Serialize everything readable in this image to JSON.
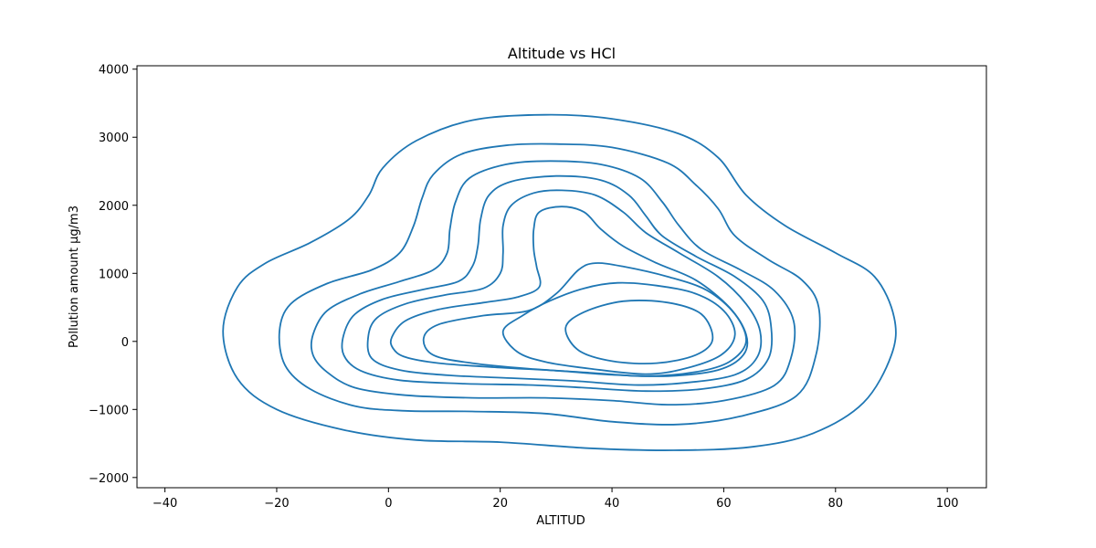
{
  "chart_data": {
    "type": "contour",
    "title": "Altitude vs HCl",
    "xlabel": "ALTITUD",
    "ylabel": "Pollution amount µg/m3",
    "xlim": [
      -45,
      107
    ],
    "ylim": [
      -2150,
      4050
    ],
    "xticks": [
      -40,
      -20,
      0,
      20,
      40,
      60,
      80,
      100
    ],
    "yticks": [
      -2000,
      -1000,
      0,
      1000,
      2000,
      3000,
      4000
    ],
    "xtick_labels": [
      "−40",
      "−20",
      "0",
      "20",
      "40",
      "60",
      "80",
      "100"
    ],
    "ytick_labels": [
      "−2000",
      "−1000",
      "0",
      "1000",
      "2000",
      "3000",
      "4000"
    ],
    "grid": false,
    "line_color": "#1f77b4",
    "levels": [
      {
        "points": [
          [
            -29.6,
            150
          ],
          [
            -27,
            800
          ],
          [
            -22,
            1150
          ],
          [
            -14,
            1450
          ],
          [
            -7,
            1800
          ],
          [
            -3.5,
            2150
          ],
          [
            -1,
            2550
          ],
          [
            5,
            2950
          ],
          [
            15,
            3250
          ],
          [
            28,
            3330
          ],
          [
            40,
            3270
          ],
          [
            52,
            3050
          ],
          [
            59,
            2700
          ],
          [
            64,
            2150
          ],
          [
            71,
            1700
          ],
          [
            80,
            1300
          ],
          [
            87,
            950
          ],
          [
            90.5,
            350
          ],
          [
            90,
            -200
          ],
          [
            85,
            -900
          ],
          [
            76,
            -1350
          ],
          [
            65,
            -1550
          ],
          [
            51,
            -1600
          ],
          [
            36,
            -1570
          ],
          [
            20,
            -1480
          ],
          [
            5,
            -1450
          ],
          [
            -8,
            -1300
          ],
          [
            -20,
            -1000
          ],
          [
            -27,
            -550
          ]
        ]
      },
      {
        "points": [
          [
            -19.5,
            150
          ],
          [
            -17.5,
            550
          ],
          [
            -11,
            850
          ],
          [
            -3,
            1050
          ],
          [
            2,
            1300
          ],
          [
            4.5,
            1700
          ],
          [
            6,
            2100
          ],
          [
            8,
            2450
          ],
          [
            13,
            2750
          ],
          [
            21,
            2880
          ],
          [
            30,
            2900
          ],
          [
            40,
            2850
          ],
          [
            50,
            2620
          ],
          [
            55,
            2300
          ],
          [
            59,
            1950
          ],
          [
            62,
            1550
          ],
          [
            68,
            1200
          ],
          [
            74,
            900
          ],
          [
            77,
            500
          ],
          [
            76.5,
            -200
          ],
          [
            73,
            -800
          ],
          [
            63,
            -1100
          ],
          [
            52,
            -1220
          ],
          [
            40,
            -1180
          ],
          [
            28,
            -1060
          ],
          [
            15,
            -1030
          ],
          [
            3,
            -1020
          ],
          [
            -6,
            -950
          ],
          [
            -14,
            -700
          ],
          [
            -18.5,
            -350
          ]
        ]
      },
      {
        "points": [
          [
            -13.5,
            100
          ],
          [
            -11,
            450
          ],
          [
            -5,
            700
          ],
          [
            2,
            880
          ],
          [
            8,
            1050
          ],
          [
            10.5,
            1300
          ],
          [
            11,
            1650
          ],
          [
            12,
            2050
          ],
          [
            14.5,
            2400
          ],
          [
            21,
            2600
          ],
          [
            29,
            2650
          ],
          [
            38,
            2600
          ],
          [
            45,
            2400
          ],
          [
            49,
            2050
          ],
          [
            52,
            1700
          ],
          [
            56,
            1350
          ],
          [
            63,
            1050
          ],
          [
            69,
            750
          ],
          [
            72.5,
            300
          ],
          [
            72,
            -250
          ],
          [
            69,
            -650
          ],
          [
            60,
            -870
          ],
          [
            50,
            -930
          ],
          [
            40,
            -870
          ],
          [
            28,
            -830
          ],
          [
            15,
            -830
          ],
          [
            3,
            -790
          ],
          [
            -6,
            -680
          ],
          [
            -11,
            -450
          ],
          [
            -13.5,
            -200
          ]
        ]
      },
      {
        "points": [
          [
            -8,
            100
          ],
          [
            -6,
            400
          ],
          [
            -1,
            620
          ],
          [
            6,
            760
          ],
          [
            12.5,
            880
          ],
          [
            15,
            1100
          ],
          [
            16,
            1400
          ],
          [
            16.5,
            1800
          ],
          [
            18,
            2150
          ],
          [
            22,
            2350
          ],
          [
            30,
            2430
          ],
          [
            38,
            2370
          ],
          [
            43,
            2150
          ],
          [
            46,
            1850
          ],
          [
            49,
            1550
          ],
          [
            55,
            1250
          ],
          [
            62,
            950
          ],
          [
            67,
            600
          ],
          [
            68.5,
            200
          ],
          [
            68,
            -250
          ],
          [
            64,
            -560
          ],
          [
            56,
            -700
          ],
          [
            46,
            -730
          ],
          [
            35,
            -680
          ],
          [
            25,
            -640
          ],
          [
            13,
            -620
          ],
          [
            2,
            -570
          ],
          [
            -5,
            -430
          ],
          [
            -8,
            -200
          ]
        ]
      },
      {
        "points": [
          [
            -3.6,
            80
          ],
          [
            -2,
            350
          ],
          [
            3,
            550
          ],
          [
            10,
            680
          ],
          [
            17,
            780
          ],
          [
            20,
            1000
          ],
          [
            20.5,
            1300
          ],
          [
            20.5,
            1700
          ],
          [
            22,
            2000
          ],
          [
            26,
            2180
          ],
          [
            31,
            2220
          ],
          [
            37,
            2150
          ],
          [
            42,
            1900
          ],
          [
            46,
            1600
          ],
          [
            52,
            1300
          ],
          [
            59,
            950
          ],
          [
            64,
            550
          ],
          [
            66.5,
            150
          ],
          [
            66,
            -230
          ],
          [
            62,
            -490
          ],
          [
            53,
            -610
          ],
          [
            44,
            -640
          ],
          [
            33,
            -580
          ],
          [
            22,
            -540
          ],
          [
            11,
            -500
          ],
          [
            2,
            -420
          ],
          [
            -3,
            -250
          ]
        ]
      },
      {
        "points": [
          [
            0.6,
            60
          ],
          [
            3,
            300
          ],
          [
            9,
            470
          ],
          [
            17,
            570
          ],
          [
            23,
            650
          ],
          [
            27,
            800
          ],
          [
            26.5,
            1100
          ],
          [
            26,
            1350
          ],
          [
            26,
            1650
          ],
          [
            27,
            1900
          ],
          [
            31,
            1980
          ],
          [
            35,
            1900
          ],
          [
            38,
            1650
          ],
          [
            42,
            1400
          ],
          [
            48,
            1150
          ],
          [
            55,
            900
          ],
          [
            61,
            500
          ],
          [
            64,
            100
          ],
          [
            63.5,
            -200
          ],
          [
            59,
            -420
          ],
          [
            50,
            -510
          ],
          [
            40,
            -490
          ],
          [
            30,
            -430
          ],
          [
            19,
            -380
          ],
          [
            9,
            -320
          ],
          [
            3,
            -230
          ],
          [
            0.8,
            -100
          ]
        ]
      },
      {
        "points": [
          [
            6.3,
            50
          ],
          [
            9,
            250
          ],
          [
            17,
            380
          ],
          [
            25,
            450
          ],
          [
            30,
            700
          ],
          [
            34,
            1050
          ],
          [
            37,
            1150
          ],
          [
            42,
            1100
          ],
          [
            50,
            950
          ],
          [
            57,
            750
          ],
          [
            62,
            400
          ],
          [
            64,
            0
          ],
          [
            61,
            -300
          ],
          [
            55,
            -450
          ],
          [
            46,
            -510
          ],
          [
            36,
            -460
          ],
          [
            25,
            -400
          ],
          [
            15,
            -320
          ],
          [
            8,
            -200
          ]
        ]
      },
      {
        "points": [
          [
            20.5,
            150
          ],
          [
            24,
            380
          ],
          [
            29,
            600
          ],
          [
            35,
            780
          ],
          [
            41,
            860
          ],
          [
            48,
            820
          ],
          [
            55,
            700
          ],
          [
            60,
            450
          ],
          [
            62,
            100
          ],
          [
            59.5,
            -200
          ],
          [
            53,
            -400
          ],
          [
            46,
            -480
          ],
          [
            36,
            -400
          ],
          [
            28,
            -300
          ],
          [
            23,
            -150
          ]
        ]
      },
      {
        "points": [
          [
            31.7,
            200
          ],
          [
            35,
            430
          ],
          [
            42,
            590
          ],
          [
            50,
            570
          ],
          [
            56,
            400
          ],
          [
            58,
            30
          ],
          [
            55,
            -200
          ],
          [
            48,
            -320
          ],
          [
            40,
            -290
          ],
          [
            34,
            -130
          ]
        ]
      }
    ]
  }
}
